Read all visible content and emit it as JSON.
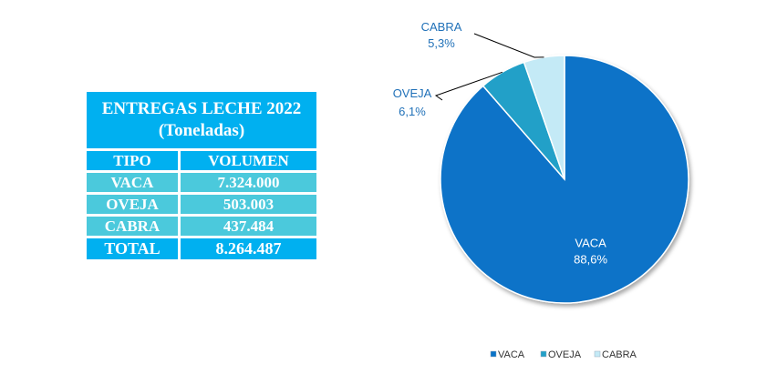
{
  "table": {
    "title_line1": "ENTREGAS LECHE 2022",
    "title_line2": "(Toneladas)",
    "header": [
      "TIPO",
      "VOLUMEN"
    ],
    "rows": [
      [
        "VACA",
        "7.324.000"
      ],
      [
        "OVEJA",
        "503.003"
      ],
      [
        "CABRA",
        "437.484"
      ]
    ],
    "total": [
      "TOTAL",
      "8.264.487"
    ]
  },
  "chart_data": {
    "type": "pie",
    "slices": [
      {
        "label": "VACA",
        "value": 88.6,
        "display": "88,6%",
        "color": "#0873c8"
      },
      {
        "label": "OVEJA",
        "value": 6.1,
        "display": "6,1%",
        "color": "#22a0c8"
      },
      {
        "label": "CABRA",
        "value": 5.3,
        "display": "5,3%",
        "color": "#c4eaf6"
      }
    ],
    "legend": [
      "VACA",
      "OVEJA",
      "CABRA"
    ],
    "legend_position": "bottom"
  }
}
